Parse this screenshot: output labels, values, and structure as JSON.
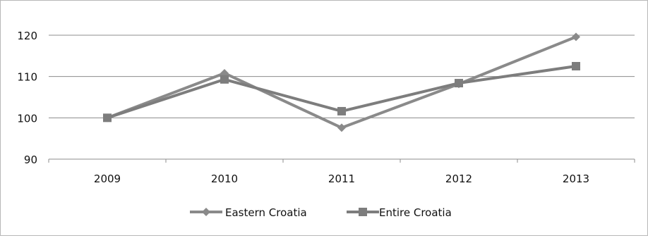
{
  "chart_data": {
    "type": "line",
    "title": "",
    "xlabel": "",
    "ylabel": "",
    "categories": [
      "2009",
      "2010",
      "2011",
      "2012",
      "2013"
    ],
    "ylim": [
      90,
      120
    ],
    "yticks": [
      "90",
      "100",
      "110",
      "120"
    ],
    "grid": true,
    "legend_position": "bottom",
    "series": [
      {
        "name": "Eastern Croatia",
        "marker": "diamond",
        "color": "#8a8a8a",
        "values": [
          100,
          110.8,
          97.6,
          108.2,
          119.6
        ]
      },
      {
        "name": "Entire Croatia",
        "marker": "square",
        "color": "#7d7d7d",
        "values": [
          100,
          109.3,
          101.6,
          108.4,
          112.5
        ]
      }
    ]
  }
}
